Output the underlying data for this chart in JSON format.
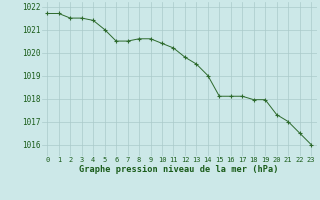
{
  "x": [
    0,
    1,
    2,
    3,
    4,
    5,
    6,
    7,
    8,
    9,
    10,
    11,
    12,
    13,
    14,
    15,
    16,
    17,
    18,
    19,
    20,
    21,
    22,
    23
  ],
  "y": [
    1021.7,
    1021.7,
    1021.5,
    1021.5,
    1021.4,
    1021.0,
    1020.5,
    1020.5,
    1020.6,
    1020.6,
    1020.4,
    1020.2,
    1019.8,
    1019.5,
    1019.0,
    1018.1,
    1018.1,
    1018.1,
    1017.95,
    1017.95,
    1017.3,
    1017.0,
    1016.5,
    1016.0
  ],
  "xlabel": "Graphe pression niveau de la mer (hPa)",
  "ylim": [
    1015.5,
    1022.2
  ],
  "xlim": [
    -0.5,
    23.5
  ],
  "yticks": [
    1016,
    1017,
    1018,
    1019,
    1020,
    1021,
    1022
  ],
  "xticks": [
    0,
    1,
    2,
    3,
    4,
    5,
    6,
    7,
    8,
    9,
    10,
    11,
    12,
    13,
    14,
    15,
    16,
    17,
    18,
    19,
    20,
    21,
    22,
    23
  ],
  "line_color": "#2d6a2d",
  "marker_color": "#2d6a2d",
  "bg_color": "#cce8e8",
  "grid_color": "#aacaca",
  "xlabel_color": "#1a5c1a",
  "tick_color": "#1a5c1a"
}
